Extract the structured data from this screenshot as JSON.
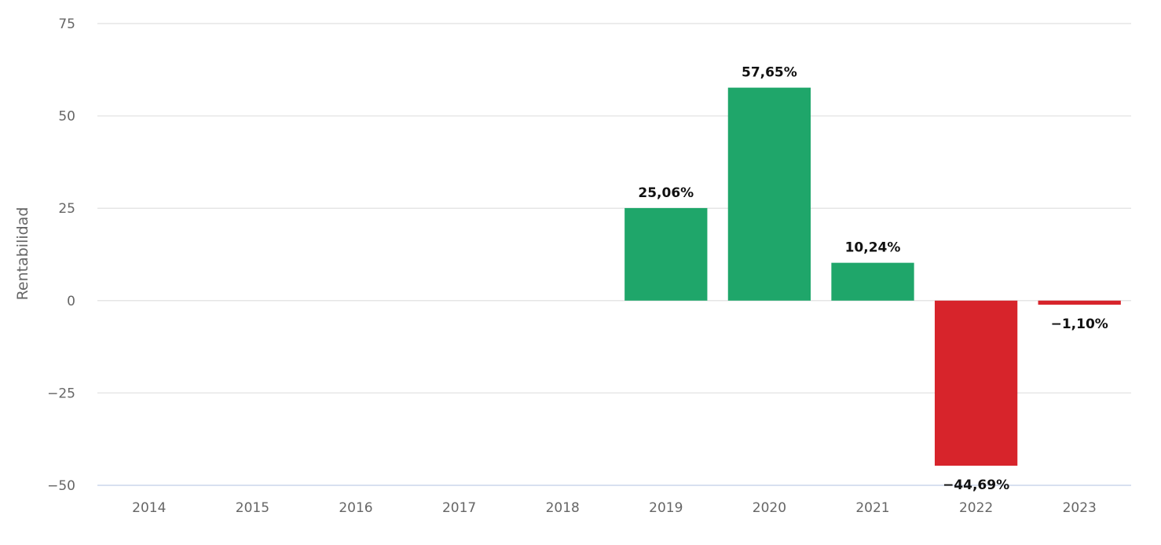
{
  "chart_data": {
    "type": "bar",
    "title": "",
    "xlabel": "",
    "ylabel": "Rentabilidad",
    "ylim": [
      -50,
      75
    ],
    "yticks": [
      {
        "value": 75,
        "label": "75"
      },
      {
        "value": 50,
        "label": "50"
      },
      {
        "value": 25,
        "label": "25"
      },
      {
        "value": 0,
        "label": "0"
      },
      {
        "value": -25,
        "label": "−25"
      },
      {
        "value": -50,
        "label": "−50"
      }
    ],
    "grid": true,
    "legend": "none",
    "categories": [
      "2014",
      "2015",
      "2016",
      "2017",
      "2018",
      "2019",
      "2020",
      "2021",
      "2022",
      "2023"
    ],
    "values": [
      null,
      null,
      null,
      null,
      null,
      25.06,
      57.65,
      10.24,
      -44.69,
      -1.1
    ],
    "data_labels": [
      "",
      "",
      "",
      "",
      "",
      "25,06%",
      "57,65%",
      "10,24%",
      "−44,69%",
      "−1,10%"
    ],
    "colors": {
      "positive": "#1fa66a",
      "negative": "#d7242b"
    }
  }
}
